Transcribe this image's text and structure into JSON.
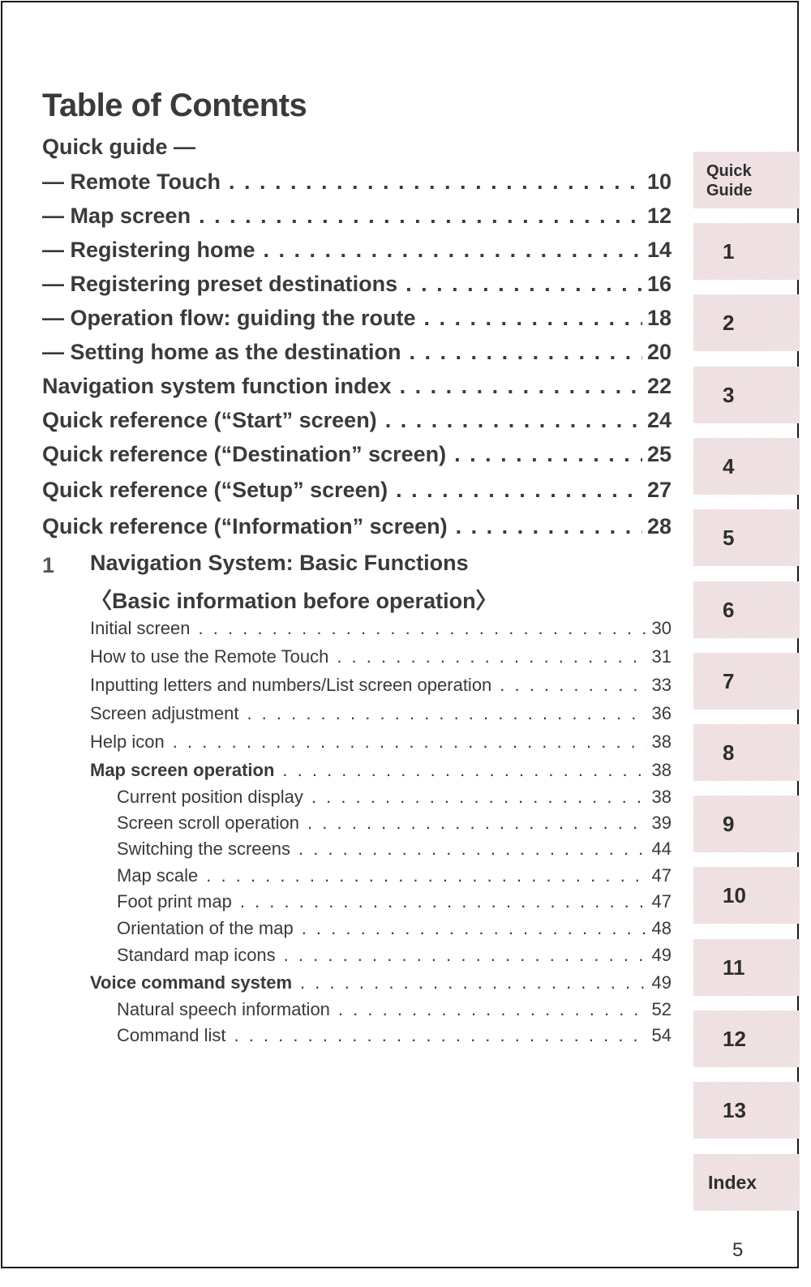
{
  "title": "Table of Contents",
  "quick_guide_heading": "Quick guide —",
  "top_entries": [
    {
      "label": "— Remote Touch",
      "page": "10"
    },
    {
      "label": "— Map screen",
      "page": "12"
    },
    {
      "label": "— Registering home",
      "page": "14"
    },
    {
      "label": "— Registering preset destinations",
      "page": "16"
    },
    {
      "label": "— Operation flow: guiding the route",
      "page": "18"
    },
    {
      "label": "— Setting home as the destination",
      "page": "20"
    },
    {
      "label": "Navigation system function index",
      "page": "22"
    },
    {
      "label": "Quick reference (“Start” screen)",
      "page": "24"
    },
    {
      "label": "Quick reference (“Destination” screen)",
      "page": "25"
    },
    {
      "label": "Quick reference (“Setup” screen)",
      "page": "27"
    },
    {
      "label": "Quick reference (“Information” screen)",
      "page": "28"
    }
  ],
  "chapter": {
    "number": "1",
    "title": "Navigation System: Basic Functions",
    "subtitle": "〈Basic information before operation〉"
  },
  "chapter_entries": [
    {
      "label": "Initial screen",
      "page": "30"
    },
    {
      "label": "How to use the Remote Touch",
      "page": "31"
    },
    {
      "label": "Inputting letters and numbers/List screen operation",
      "page": "33"
    },
    {
      "label": "Screen adjustment",
      "page": "36"
    },
    {
      "label": "Help icon",
      "page": "38"
    },
    {
      "label": "Map screen operation",
      "page": "38"
    },
    {
      "label": "Current position display",
      "page": "38"
    },
    {
      "label": "Screen scroll operation",
      "page": "39"
    },
    {
      "label": "Switching the screens",
      "page": "44"
    },
    {
      "label": "Map scale",
      "page": "47"
    },
    {
      "label": "Foot print map",
      "page": "47"
    },
    {
      "label": "Orientation of the map",
      "page": "48"
    },
    {
      "label": "Standard map icons",
      "page": "49"
    },
    {
      "label": "Voice command system",
      "page": "49"
    },
    {
      "label": "Natural speech information",
      "page": "52"
    },
    {
      "label": "Command list",
      "page": "54"
    }
  ],
  "tabs": [
    "Quick Guide",
    "1",
    "2",
    "3",
    "4",
    "5",
    "6",
    "7",
    "8",
    "9",
    "10",
    "11",
    "12",
    "13",
    "Index"
  ],
  "page_number": "5",
  "colors": {
    "tab_background": "#f2e4e6",
    "text": "#3a3a3a"
  }
}
